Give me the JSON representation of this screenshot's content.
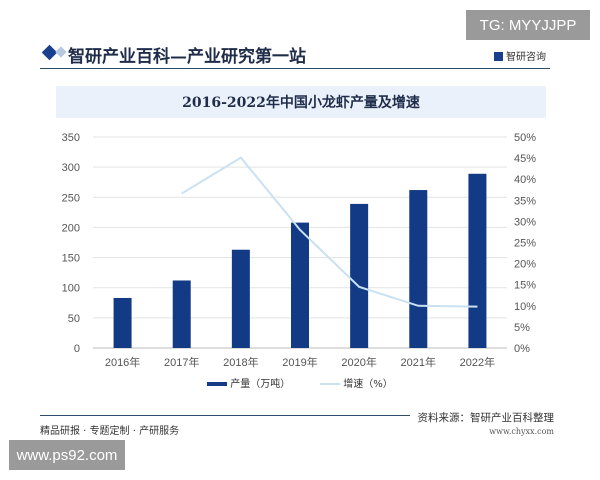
{
  "watermarks": {
    "tg": "TG: MYYJJPP",
    "site": "www.ps92.com"
  },
  "header": {
    "title": "智研产业百科—产业研究第一站",
    "brand": "智研咨询"
  },
  "footer": {
    "left": "精品研报 · 专题定制 · 产研服务",
    "source": "资料来源：智研产业百科整理",
    "url": "www.chyxx.com"
  },
  "colors": {
    "bar": "#123a85",
    "line": "#c9e1f0"
  },
  "chart_data": {
    "type": "bar+line",
    "title": "2016-2022年中国小龙虾产量及增速",
    "categories": [
      "2016年",
      "2017年",
      "2018年",
      "2019年",
      "2020年",
      "2021年",
      "2022年"
    ],
    "series": [
      {
        "name": "产量（万吨）",
        "type": "bar",
        "axis": "left",
        "values": [
          83,
          112,
          163,
          208,
          239,
          262,
          289
        ]
      },
      {
        "name": "增速（%）",
        "type": "line",
        "axis": "right",
        "values": [
          null,
          36.6,
          45.1,
          28,
          14.5,
          10,
          9.8
        ]
      }
    ],
    "yleft": {
      "lim": [
        0,
        350
      ],
      "ticks": [
        "0",
        "50",
        "100",
        "150",
        "200",
        "250",
        "300",
        "350"
      ]
    },
    "yright": {
      "lim": [
        0,
        50
      ],
      "ticks": [
        "0%",
        "5%",
        "10%",
        "15%",
        "20%",
        "25%",
        "30%",
        "35%",
        "40%",
        "45%",
        "50%"
      ]
    },
    "grid": true,
    "legend": "bottom"
  }
}
